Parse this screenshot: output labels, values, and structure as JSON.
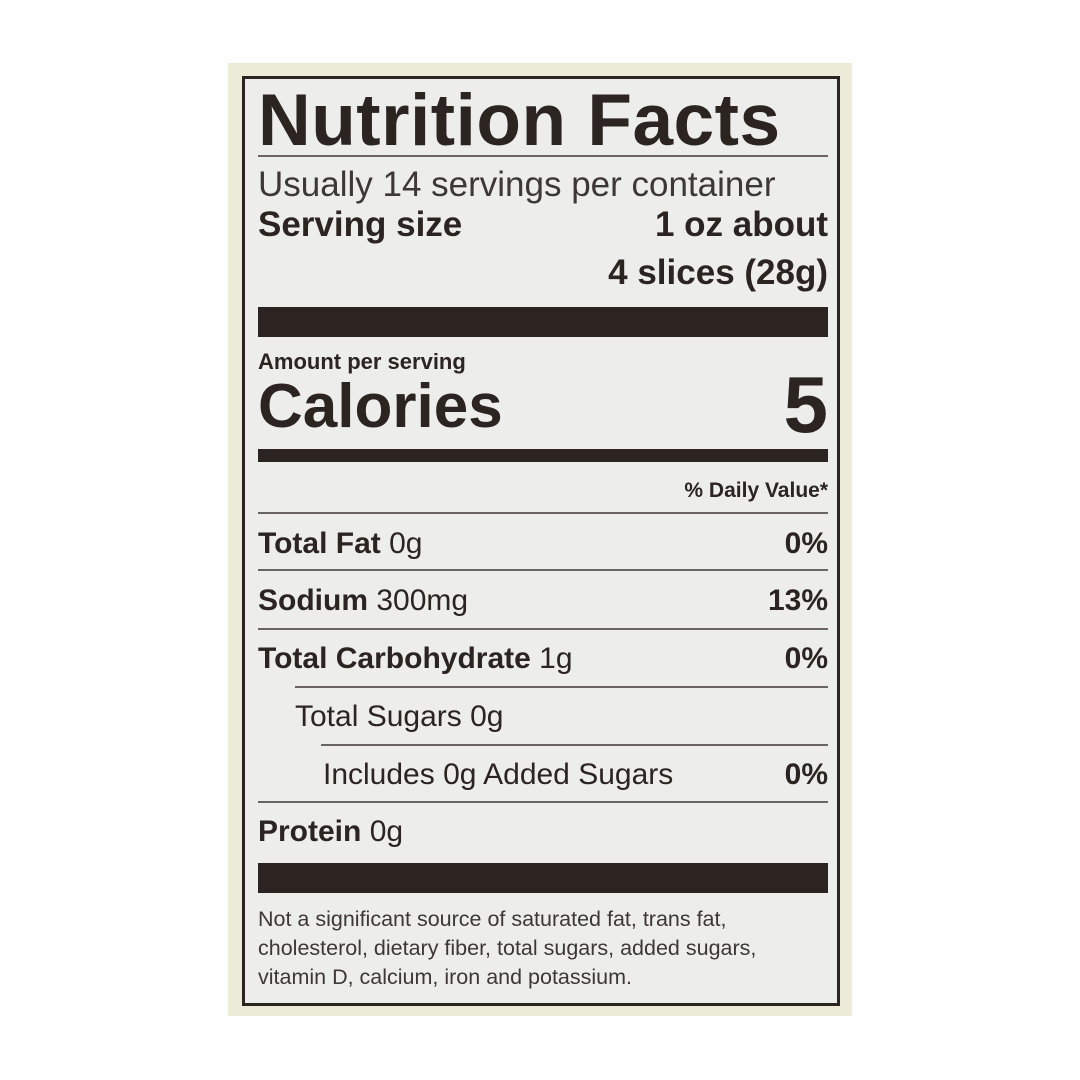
{
  "title": "Nutrition Facts",
  "servings_per_container": "Usually 14 servings per container",
  "serving_size": {
    "label": "Serving size",
    "value_line1": "1 oz about",
    "value_line2": "4 slices (28g)"
  },
  "amount_per_serving": "Amount per serving",
  "calories": {
    "label": "Calories",
    "value": "5"
  },
  "daily_value_header": "% Daily Value*",
  "nutrients": [
    {
      "name": "Total Fat",
      "amount": "0g",
      "dv": "0%"
    },
    {
      "name": "Sodium",
      "amount": "300mg",
      "dv": "13%"
    },
    {
      "name": "Total Carbohydrate",
      "amount": "1g",
      "dv": "0%"
    },
    {
      "name": "",
      "amount": "Total Sugars 0g",
      "dv": ""
    },
    {
      "name": "",
      "amount": "Includes 0g Added Sugars",
      "dv": "0%"
    },
    {
      "name": "Protein",
      "amount": "0g",
      "dv": ""
    }
  ],
  "footnote": [
    "Not a significant source of saturated fat, trans fat,",
    "cholesterol, dietary fiber, total sugars, added sugars,",
    "vitamin D, calcium, iron and potassium."
  ],
  "colors": {
    "ink": "#2b2421",
    "label_bg": "#edeeec",
    "panel": "#ecebd8"
  }
}
